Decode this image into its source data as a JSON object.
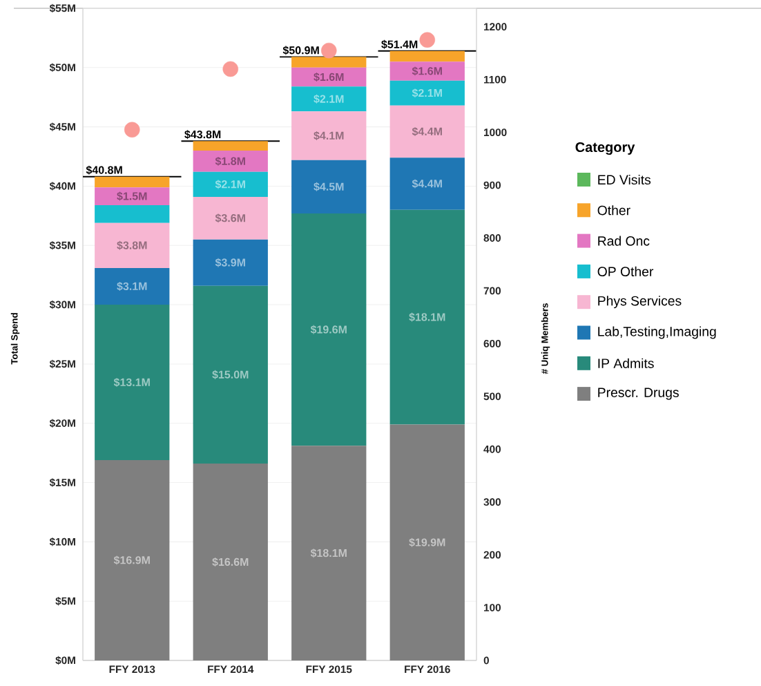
{
  "chart_data": {
    "type": "bar",
    "stacked": true,
    "categories": [
      "FFY 2013",
      "FFY 2014",
      "FFY 2015",
      "FFY 2016"
    ],
    "ylabel": "Total Spend",
    "y2label": "# Uniq Members",
    "legend_title": "Category",
    "legend": "right",
    "grid": "y",
    "ylim": [
      0,
      55
    ],
    "yticks": [
      {
        "value": 0,
        "label": "$0M"
      },
      {
        "value": 5,
        "label": "$5M"
      },
      {
        "value": 10,
        "label": "$10M"
      },
      {
        "value": 15,
        "label": "$15M"
      },
      {
        "value": 20,
        "label": "$20M"
      },
      {
        "value": 25,
        "label": "$25M"
      },
      {
        "value": 30,
        "label": "$30M"
      },
      {
        "value": 35,
        "label": "$35M"
      },
      {
        "value": 40,
        "label": "$40M"
      },
      {
        "value": 45,
        "label": "$45M"
      },
      {
        "value": 50,
        "label": "$50M"
      },
      {
        "value": 55,
        "label": "$55M"
      }
    ],
    "y2lim": [
      0,
      1235
    ],
    "y2ticks": [
      0,
      100,
      200,
      300,
      400,
      500,
      600,
      700,
      800,
      900,
      1000,
      1100,
      1200
    ],
    "series": [
      {
        "name": "Prescr. Drugs",
        "color": "#7f7f7f",
        "values": [
          16.9,
          16.6,
          18.1,
          19.9
        ],
        "value_labels": [
          "$16.9M",
          "$16.6M",
          "$18.1M",
          "$19.9M"
        ]
      },
      {
        "name": "IP Admits",
        "color": "#288a7b",
        "values": [
          13.1,
          15.0,
          19.6,
          18.1
        ],
        "value_labels": [
          "$13.1M",
          "$15.0M",
          "$19.6M",
          "$18.1M"
        ]
      },
      {
        "name": "Lab,Testing,Imaging",
        "color": "#1f77b4",
        "values": [
          3.1,
          3.9,
          4.5,
          4.4
        ],
        "value_labels": [
          "$3.1M",
          "$3.9M",
          "$4.5M",
          "$4.4M"
        ]
      },
      {
        "name": "Phys Services",
        "color": "#f7b6d2",
        "values": [
          3.8,
          3.6,
          4.1,
          4.4
        ],
        "value_labels": [
          "$3.8M",
          "$3.6M",
          "$4.1M",
          "$4.4M"
        ]
      },
      {
        "name": "OP Other",
        "color": "#17becf",
        "values": [
          1.5,
          2.1,
          2.1,
          2.1
        ],
        "value_labels": [
          null,
          "$2.1M",
          "$2.1M",
          "$2.1M"
        ]
      },
      {
        "name": "Rad Onc",
        "color": "#e377c2",
        "values": [
          1.5,
          1.8,
          1.6,
          1.6
        ],
        "value_labels": [
          "$1.5M",
          "$1.8M",
          "$1.6M",
          "$1.6M"
        ]
      },
      {
        "name": "Other",
        "color": "#f7a42a",
        "values": [
          0.9,
          0.8,
          0.9,
          0.9
        ]
      },
      {
        "name": "ED Visits",
        "color": "#5cb85c",
        "values": [
          null,
          null,
          null,
          null
        ]
      },
      {
        "type": "scatter",
        "axis": "y2",
        "marker": "circle",
        "color": "#f99a95",
        "x": [
          "FFY 2013",
          "FFY 2014",
          "FFY 2015",
          "FFY 2016"
        ],
        "values": [
          1005,
          1120,
          1155,
          1175
        ]
      }
    ],
    "totals": [
      "$40.8M",
      "$43.8M",
      "$50.9M",
      "$51.4M"
    ]
  }
}
